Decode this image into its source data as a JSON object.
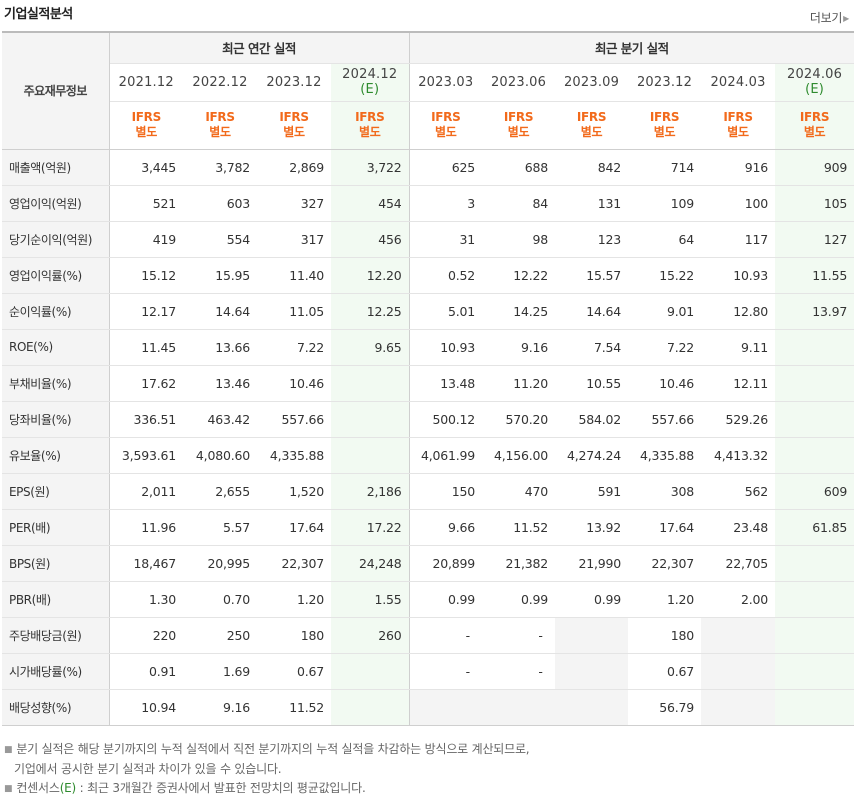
{
  "page": {
    "title": "기업실적분석",
    "more_label": "더보기"
  },
  "table": {
    "corner_label": "주요재무정보",
    "groups": [
      "최근 연간 실적",
      "최근 분기 실적"
    ],
    "periods": [
      {
        "date": "2021.12",
        "estimate": false,
        "ifrs": [
          "IFRS",
          "별도"
        ]
      },
      {
        "date": "2022.12",
        "estimate": false,
        "ifrs": [
          "IFRS",
          "별도"
        ]
      },
      {
        "date": "2023.12",
        "estimate": false,
        "ifrs": [
          "IFRS",
          "별도"
        ]
      },
      {
        "date": "2024.12",
        "estimate": true,
        "est_mark": "(E)",
        "ifrs": [
          "IFRS",
          "별도"
        ]
      },
      {
        "date": "2023.03",
        "estimate": false,
        "ifrs": [
          "IFRS",
          "별도"
        ]
      },
      {
        "date": "2023.06",
        "estimate": false,
        "ifrs": [
          "IFRS",
          "별도"
        ]
      },
      {
        "date": "2023.09",
        "estimate": false,
        "ifrs": [
          "IFRS",
          "별도"
        ]
      },
      {
        "date": "2023.12",
        "estimate": false,
        "ifrs": [
          "IFRS",
          "별도"
        ]
      },
      {
        "date": "2024.03",
        "estimate": false,
        "ifrs": [
          "IFRS",
          "별도"
        ]
      },
      {
        "date": "2024.06",
        "estimate": true,
        "est_mark": "(E)",
        "ifrs": [
          "IFRS",
          "별도"
        ]
      }
    ],
    "rows": [
      {
        "label": "매출액(억원)",
        "values": [
          "3,445",
          "3,782",
          "2,869",
          "3,722",
          "625",
          "688",
          "842",
          "714",
          "916",
          "909"
        ]
      },
      {
        "label": "영업이익(억원)",
        "values": [
          "521",
          "603",
          "327",
          "454",
          "3",
          "84",
          "131",
          "109",
          "100",
          "105"
        ]
      },
      {
        "label": "당기순이익(억원)",
        "values": [
          "419",
          "554",
          "317",
          "456",
          "31",
          "98",
          "123",
          "64",
          "117",
          "127"
        ]
      },
      {
        "label": "영업이익률(%)",
        "values": [
          "15.12",
          "15.95",
          "11.40",
          "12.20",
          "0.52",
          "12.22",
          "15.57",
          "15.22",
          "10.93",
          "11.55"
        ]
      },
      {
        "label": "순이익률(%)",
        "values": [
          "12.17",
          "14.64",
          "11.05",
          "12.25",
          "5.01",
          "14.25",
          "14.64",
          "9.01",
          "12.80",
          "13.97"
        ]
      },
      {
        "label": "ROE(%)",
        "values": [
          "11.45",
          "13.66",
          "7.22",
          "9.65",
          "10.93",
          "9.16",
          "7.54",
          "7.22",
          "9.11",
          ""
        ]
      },
      {
        "label": "부채비율(%)",
        "values": [
          "17.62",
          "13.46",
          "10.46",
          "",
          "13.48",
          "11.20",
          "10.55",
          "10.46",
          "12.11",
          ""
        ]
      },
      {
        "label": "당좌비율(%)",
        "values": [
          "336.51",
          "463.42",
          "557.66",
          "",
          "500.12",
          "570.20",
          "584.02",
          "557.66",
          "529.26",
          ""
        ]
      },
      {
        "label": "유보율(%)",
        "values": [
          "3,593.61",
          "4,080.60",
          "4,335.88",
          "",
          "4,061.99",
          "4,156.00",
          "4,274.24",
          "4,335.88",
          "4,413.32",
          ""
        ]
      },
      {
        "label": "EPS(원)",
        "values": [
          "2,011",
          "2,655",
          "1,520",
          "2,186",
          "150",
          "470",
          "591",
          "308",
          "562",
          "609"
        ]
      },
      {
        "label": "PER(배)",
        "values": [
          "11.96",
          "5.57",
          "17.64",
          "17.22",
          "9.66",
          "11.52",
          "13.92",
          "17.64",
          "23.48",
          "61.85"
        ]
      },
      {
        "label": "BPS(원)",
        "values": [
          "18,467",
          "20,995",
          "22,307",
          "24,248",
          "20,899",
          "21,382",
          "21,990",
          "22,307",
          "22,705",
          ""
        ]
      },
      {
        "label": "PBR(배)",
        "values": [
          "1.30",
          "0.70",
          "1.20",
          "1.55",
          "0.99",
          "0.99",
          "0.99",
          "1.20",
          "2.00",
          ""
        ]
      },
      {
        "label": "주당배당금(원)",
        "values": [
          "220",
          "250",
          "180",
          "260",
          "-",
          "-",
          "",
          "180",
          "",
          ""
        ]
      },
      {
        "label": "시가배당률(%)",
        "values": [
          "0.91",
          "1.69",
          "0.67",
          "",
          "-",
          "-",
          "",
          "0.67",
          "",
          ""
        ]
      },
      {
        "label": "배당성향(%)",
        "values": [
          "10.94",
          "9.16",
          "11.52",
          "",
          "",
          "",
          "",
          "56.79",
          "",
          ""
        ]
      }
    ]
  },
  "notes": {
    "line1": "분기 실적은 해당 분기까지의 누적 실적에서 직전 분기까지의 누적 실적을 차감하는 방식으로 계산되므로,",
    "line2": "기업에서 공시한 분기 실적과 차이가 있을 수 있습니다.",
    "line3_prefix": "컨센서스",
    "line3_mark": "(E)",
    "line3_suffix": " : 최근 3개월간 증권사에서 발표한 전망치의 평균값입니다."
  },
  "colors": {
    "ifrs_orange": "#f26a1b",
    "estimate_green": "#2e8b2e",
    "estimate_bg": "#f2faf2"
  }
}
